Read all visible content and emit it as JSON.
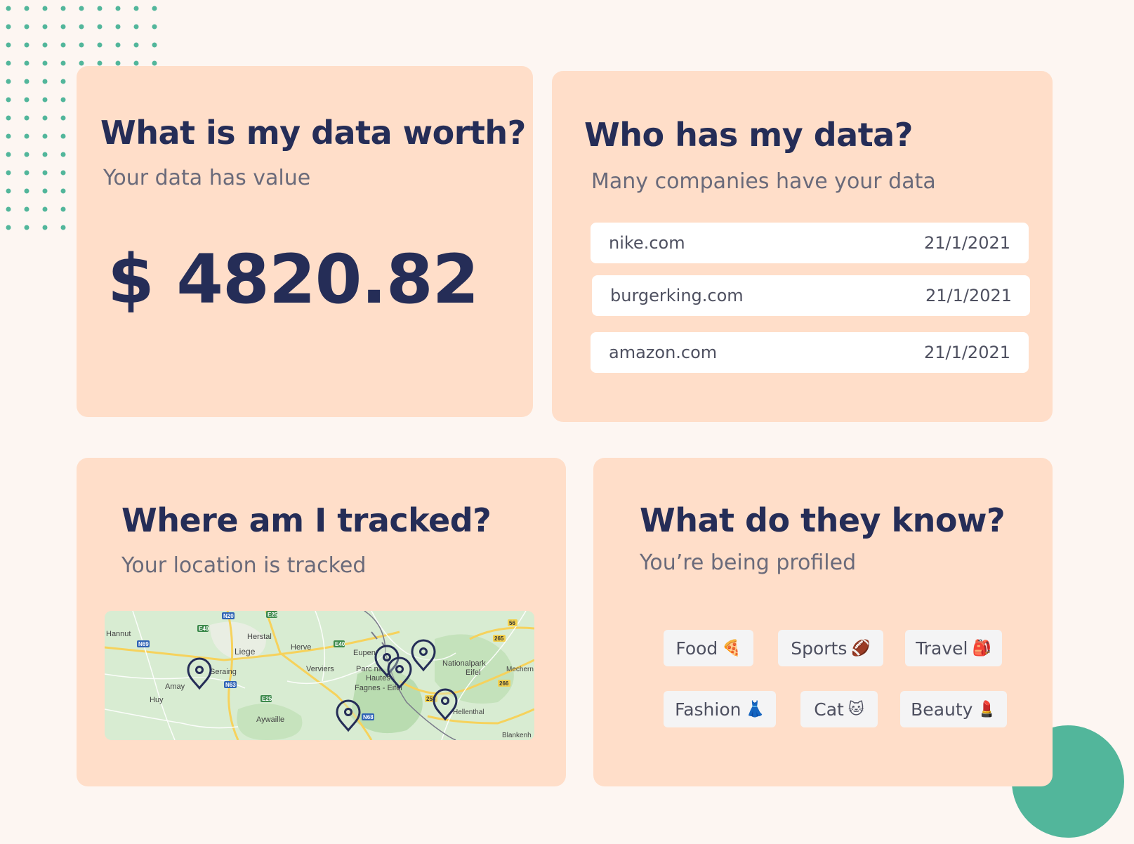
{
  "worth": {
    "title": "What is my data worth?",
    "subtitle": "Your data has value",
    "amount": "$ 4820.82"
  },
  "companies": {
    "title": "Who has my data?",
    "subtitle": "Many companies have your data",
    "rows": [
      {
        "name": "nike.com",
        "date": "21/1/2021"
      },
      {
        "name": "burgerking.com",
        "date": "21/1/2021"
      },
      {
        "name": "amazon.com",
        "date": "21/1/2021"
      }
    ]
  },
  "tracking": {
    "title": "Where am I tracked?",
    "subtitle": "Your location is tracked",
    "map_labels": [
      "Hannut",
      "Herstal",
      "Liege",
      "Herve",
      "Seraing",
      "Verviers",
      "Eupen",
      "Amay",
      "Huy",
      "Aywaille",
      "Parc na",
      "Hautes",
      "Fagnes - Eifel",
      "Nationalpark",
      "Eifel",
      "Mechern",
      "Hellenthal",
      "Blankenh"
    ],
    "road_labels": [
      "N20",
      "E25",
      "E40",
      "N69",
      "E40",
      "N63",
      "E25",
      "N68",
      "265",
      "266",
      "56",
      "258"
    ]
  },
  "profile": {
    "title": "What do they know?",
    "subtitle": "You’re being profiled",
    "tags": [
      {
        "label": "Food",
        "emoji": "🍕"
      },
      {
        "label": "Sports",
        "emoji": "🏈"
      },
      {
        "label": "Travel",
        "emoji": "🎒"
      },
      {
        "label": "Fashion",
        "emoji": "👗"
      },
      {
        "label": "Cat",
        "emoji": "🐱"
      },
      {
        "label": "Beauty",
        "emoji": "💄"
      }
    ]
  },
  "colors": {
    "card": "#ffdec9",
    "heading": "#252d57",
    "accent": "#52b69b",
    "background": "#fdf6f2"
  },
  "icons": [
    "map-pin-icon",
    "dot-grid-decoration",
    "green-circle-decoration"
  ]
}
